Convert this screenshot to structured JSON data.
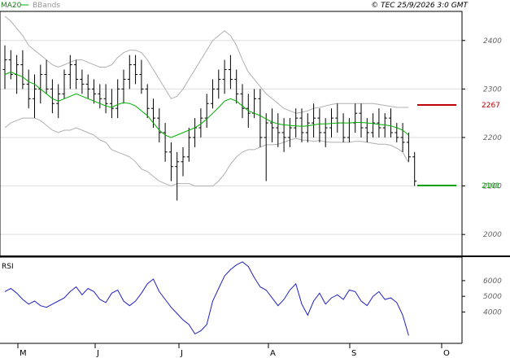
{
  "header": {
    "legend_ma": "MA20",
    "legend_bb": "BBands",
    "copyright": "© TEC 25/9/2026 3:0 GMT"
  },
  "colors": {
    "ma": "#00b000",
    "bands": "#b0b0b0",
    "price_bar": "#000000",
    "rsi": "#2020c0",
    "resistance": "#c00000",
    "support": "#00a000",
    "grid": "#dddddd",
    "frame": "#000000"
  },
  "chart_data": [
    {
      "type": "ohlc",
      "title": "",
      "ylim": [
        1955,
        2460
      ],
      "y_ticks": [
        2000,
        2100,
        2200,
        2300,
        2400
      ],
      "x_labels": [
        "M",
        "J",
        "J",
        "A",
        "S",
        "O"
      ],
      "ohlc": [
        [
          2340,
          2390,
          2300,
          2360
        ],
        [
          2360,
          2380,
          2320,
          2330
        ],
        [
          2330,
          2370,
          2290,
          2350
        ],
        [
          2350,
          2380,
          2300,
          2310
        ],
        [
          2310,
          2340,
          2260,
          2280
        ],
        [
          2280,
          2330,
          2240,
          2300
        ],
        [
          2300,
          2350,
          2270,
          2330
        ],
        [
          2330,
          2360,
          2290,
          2300
        ],
        [
          2300,
          2320,
          2250,
          2270
        ],
        [
          2270,
          2310,
          2240,
          2290
        ],
        [
          2290,
          2340,
          2280,
          2330
        ],
        [
          2330,
          2370,
          2300,
          2350
        ],
        [
          2350,
          2360,
          2300,
          2320
        ],
        [
          2320,
          2340,
          2290,
          2310
        ],
        [
          2310,
          2330,
          2280,
          2300
        ],
        [
          2300,
          2320,
          2270,
          2290
        ],
        [
          2290,
          2310,
          2260,
          2280
        ],
        [
          2280,
          2310,
          2250,
          2270
        ],
        [
          2270,
          2300,
          2240,
          2260
        ],
        [
          2260,
          2320,
          2240,
          2300
        ],
        [
          2300,
          2340,
          2270,
          2320
        ],
        [
          2320,
          2370,
          2300,
          2350
        ],
        [
          2350,
          2370,
          2310,
          2330
        ],
        [
          2330,
          2360,
          2290,
          2300
        ],
        [
          2300,
          2310,
          2240,
          2260
        ],
        [
          2260,
          2280,
          2220,
          2240
        ],
        [
          2240,
          2260,
          2190,
          2210
        ],
        [
          2210,
          2230,
          2150,
          2170
        ],
        [
          2170,
          2190,
          2110,
          2140
        ],
        [
          2140,
          2170,
          2070,
          2150
        ],
        [
          2150,
          2180,
          2120,
          2160
        ],
        [
          2160,
          2220,
          2150,
          2200
        ],
        [
          2200,
          2240,
          2180,
          2220
        ],
        [
          2220,
          2260,
          2200,
          2240
        ],
        [
          2240,
          2290,
          2220,
          2270
        ],
        [
          2270,
          2320,
          2260,
          2300
        ],
        [
          2300,
          2340,
          2280,
          2320
        ],
        [
          2320,
          2360,
          2290,
          2340
        ],
        [
          2340,
          2370,
          2300,
          2320
        ],
        [
          2320,
          2340,
          2270,
          2290
        ],
        [
          2290,
          2310,
          2240,
          2260
        ],
        [
          2260,
          2290,
          2220,
          2250
        ],
        [
          2250,
          2300,
          2240,
          2280
        ],
        [
          2280,
          2300,
          2180,
          2200
        ],
        [
          2200,
          2250,
          2110,
          2230
        ],
        [
          2230,
          2260,
          2190,
          2220
        ],
        [
          2220,
          2250,
          2180,
          2210
        ],
        [
          2210,
          2240,
          2170,
          2200
        ],
        [
          2200,
          2240,
          2180,
          2220
        ],
        [
          2220,
          2260,
          2200,
          2240
        ],
        [
          2240,
          2260,
          2190,
          2210
        ],
        [
          2210,
          2250,
          2190,
          2230
        ],
        [
          2230,
          2270,
          2200,
          2240
        ],
        [
          2240,
          2260,
          2190,
          2210
        ],
        [
          2210,
          2240,
          2180,
          2220
        ],
        [
          2220,
          2260,
          2200,
          2240
        ],
        [
          2240,
          2270,
          2210,
          2230
        ],
        [
          2230,
          2250,
          2190,
          2200
        ],
        [
          2200,
          2240,
          2190,
          2230
        ],
        [
          2230,
          2270,
          2210,
          2250
        ],
        [
          2250,
          2270,
          2200,
          2220
        ],
        [
          2220,
          2240,
          2190,
          2210
        ],
        [
          2210,
          2250,
          2200,
          2230
        ],
        [
          2230,
          2260,
          2200,
          2220
        ],
        [
          2220,
          2250,
          2200,
          2240
        ],
        [
          2240,
          2260,
          2200,
          2210
        ],
        [
          2210,
          2230,
          2190,
          2200
        ],
        [
          2200,
          2230,
          2170,
          2190
        ],
        [
          2190,
          2210,
          2150,
          2160
        ],
        [
          2160,
          2170,
          2100,
          2110
        ]
      ],
      "ma20": [
        2330,
        2335,
        2330,
        2325,
        2315,
        2310,
        2300,
        2290,
        2280,
        2275,
        2280,
        2285,
        2290,
        2285,
        2280,
        2275,
        2270,
        2265,
        2262,
        2268,
        2272,
        2270,
        2265,
        2255,
        2245,
        2230,
        2215,
        2205,
        2200,
        2205,
        2210,
        2215,
        2220,
        2228,
        2238,
        2250,
        2262,
        2275,
        2280,
        2275,
        2265,
        2255,
        2250,
        2245,
        2238,
        2232,
        2228,
        2226,
        2225,
        2224,
        2223,
        2224,
        2226,
        2228,
        2228,
        2229,
        2230,
        2230,
        2230,
        2231,
        2231,
        2230,
        2229,
        2227,
        2226,
        2224,
        2220,
        2215,
        2205
      ],
      "upper_band": [
        2450,
        2440,
        2425,
        2410,
        2390,
        2380,
        2370,
        2360,
        2350,
        2345,
        2350,
        2355,
        2360,
        2360,
        2355,
        2350,
        2345,
        2345,
        2350,
        2365,
        2375,
        2380,
        2380,
        2375,
        2360,
        2340,
        2320,
        2300,
        2280,
        2285,
        2300,
        2320,
        2340,
        2360,
        2380,
        2400,
        2410,
        2420,
        2410,
        2390,
        2360,
        2335,
        2320,
        2305,
        2290,
        2280,
        2270,
        2260,
        2255,
        2250,
        2252,
        2255,
        2260,
        2262,
        2265,
        2268,
        2270,
        2270,
        2270,
        2270,
        2270,
        2270,
        2270,
        2268,
        2266,
        2264,
        2262,
        2262,
        2262
      ],
      "lower_band": [
        2220,
        2230,
        2235,
        2240,
        2240,
        2240,
        2235,
        2225,
        2215,
        2210,
        2215,
        2215,
        2220,
        2215,
        2210,
        2205,
        2195,
        2190,
        2175,
        2170,
        2165,
        2160,
        2150,
        2135,
        2130,
        2120,
        2110,
        2105,
        2100,
        2105,
        2105,
        2105,
        2100,
        2100,
        2100,
        2100,
        2110,
        2125,
        2145,
        2160,
        2170,
        2175,
        2175,
        2180,
        2185,
        2185,
        2186,
        2190,
        2195,
        2198,
        2195,
        2194,
        2192,
        2194,
        2191,
        2190,
        2190,
        2190,
        2190,
        2192,
        2192,
        2190,
        2188,
        2186,
        2186,
        2184,
        2178,
        2170,
        2148
      ],
      "levels": [
        {
          "label": "2267",
          "value": 2267,
          "kind": "resistance"
        },
        {
          "label": "2101",
          "value": 2101,
          "kind": "support"
        }
      ]
    },
    {
      "type": "line",
      "title": "RSI",
      "ylim": [
        2000,
        7500
      ],
      "y_ticks": [
        4000,
        5000,
        6000
      ],
      "rsi": [
        5300,
        5500,
        5200,
        4800,
        4500,
        4700,
        4400,
        4300,
        4500,
        4700,
        4900,
        5300,
        5600,
        5100,
        5500,
        5300,
        4800,
        4600,
        5200,
        5400,
        4700,
        4400,
        4700,
        5200,
        5800,
        6100,
        5300,
        4800,
        4300,
        3900,
        3500,
        3200,
        2600,
        2800,
        3200,
        4700,
        5500,
        6300,
        6700,
        7000,
        7200,
        6900,
        6200,
        5600,
        5400,
        4900,
        4400,
        4800,
        5400,
        5800,
        4500,
        3800,
        4700,
        5200,
        4500,
        4900,
        5100,
        4800,
        5400,
        5300,
        4700,
        4400,
        5000,
        5300,
        4800,
        4900,
        4600,
        3800,
        2500
      ]
    }
  ]
}
